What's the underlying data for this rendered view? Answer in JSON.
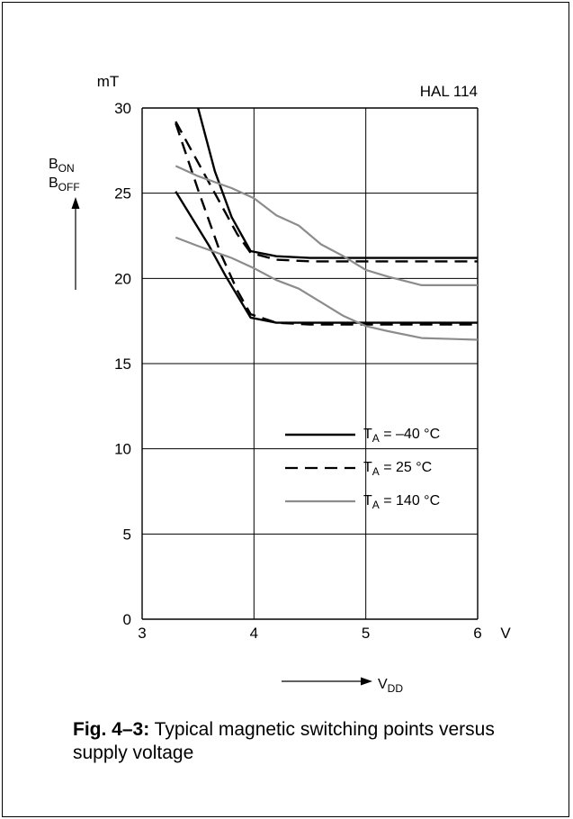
{
  "chart_data": {
    "type": "line",
    "title": "HAL 114",
    "xlim": [
      3,
      6
    ],
    "ylim": [
      0,
      30
    ],
    "x_ticks": [
      "3",
      "4",
      "5",
      "6"
    ],
    "y_ticks": [
      "0",
      "5",
      "10",
      "15",
      "20",
      "25",
      "30"
    ],
    "x_unit": "V",
    "y_unit": "mT",
    "ylabel": {
      "line1_base": "B",
      "line1_sub": "ON",
      "line2_base": "B",
      "line2_sub": "OFF"
    },
    "xlabel": {
      "base": "V",
      "sub": "DD"
    },
    "grid": true,
    "legend": [
      {
        "style": "solid",
        "color": "#000000",
        "base": "T",
        "sub": "A",
        "rest": " = –40 °C"
      },
      {
        "style": "dashed",
        "color": "#000000",
        "base": "T",
        "sub": "A",
        "rest": " = 25 °C"
      },
      {
        "style": "solid",
        "color": "#8c8c8c",
        "base": "T",
        "sub": "A",
        "rest": " = 140 °C"
      }
    ],
    "series": [
      {
        "style": "solid",
        "color": "#000000",
        "kind": "B_ON",
        "x": [
          3.5,
          3.65,
          3.8,
          3.97,
          4.2,
          4.5,
          5.0,
          5.5,
          6.0
        ],
        "y": [
          30.0,
          26.3,
          23.6,
          21.6,
          21.3,
          21.2,
          21.2,
          21.2,
          21.2
        ]
      },
      {
        "style": "solid",
        "color": "#000000",
        "kind": "B_OFF",
        "x": [
          3.3,
          3.45,
          3.6,
          3.75,
          3.97,
          4.2,
          4.5,
          5.0,
          5.5,
          6.0
        ],
        "y": [
          25.1,
          23.5,
          21.9,
          20.1,
          17.7,
          17.4,
          17.4,
          17.4,
          17.4,
          17.4
        ]
      },
      {
        "style": "dashed",
        "color": "#000000",
        "kind": "B_ON",
        "x": [
          3.3,
          3.5,
          3.7,
          3.85,
          3.97,
          4.2,
          4.5,
          5.0,
          5.5,
          6.0
        ],
        "y": [
          29.2,
          26.8,
          24.4,
          22.6,
          21.5,
          21.1,
          21.0,
          21.0,
          21.0,
          21.0
        ]
      },
      {
        "style": "dashed",
        "color": "#000000",
        "kind": "B_OFF",
        "x": [
          3.3,
          3.5,
          3.7,
          3.85,
          3.97,
          4.2,
          4.5,
          5.0,
          5.5,
          6.0
        ],
        "y": [
          29.1,
          25.2,
          21.5,
          19.3,
          17.9,
          17.4,
          17.3,
          17.3,
          17.3,
          17.3
        ]
      },
      {
        "style": "solid",
        "color": "#8c8c8c",
        "kind": "B_ON",
        "x": [
          3.3,
          3.5,
          3.8,
          4.0,
          4.2,
          4.4,
          4.6,
          4.8,
          5.0,
          5.2,
          5.5,
          6.0
        ],
        "y": [
          26.6,
          26.0,
          25.3,
          24.7,
          23.7,
          23.1,
          22.0,
          21.3,
          20.5,
          20.1,
          19.6,
          19.6
        ]
      },
      {
        "style": "solid",
        "color": "#8c8c8c",
        "kind": "B_OFF",
        "x": [
          3.3,
          3.5,
          3.8,
          4.0,
          4.2,
          4.4,
          4.6,
          4.8,
          5.0,
          5.2,
          5.5,
          6.0
        ],
        "y": [
          22.4,
          21.9,
          21.2,
          20.6,
          19.9,
          19.4,
          18.6,
          17.8,
          17.2,
          16.9,
          16.5,
          16.4
        ]
      }
    ]
  },
  "caption": {
    "label": "Fig. 4–3:",
    "text": " Typical magnetic switching points versus supply voltage"
  }
}
